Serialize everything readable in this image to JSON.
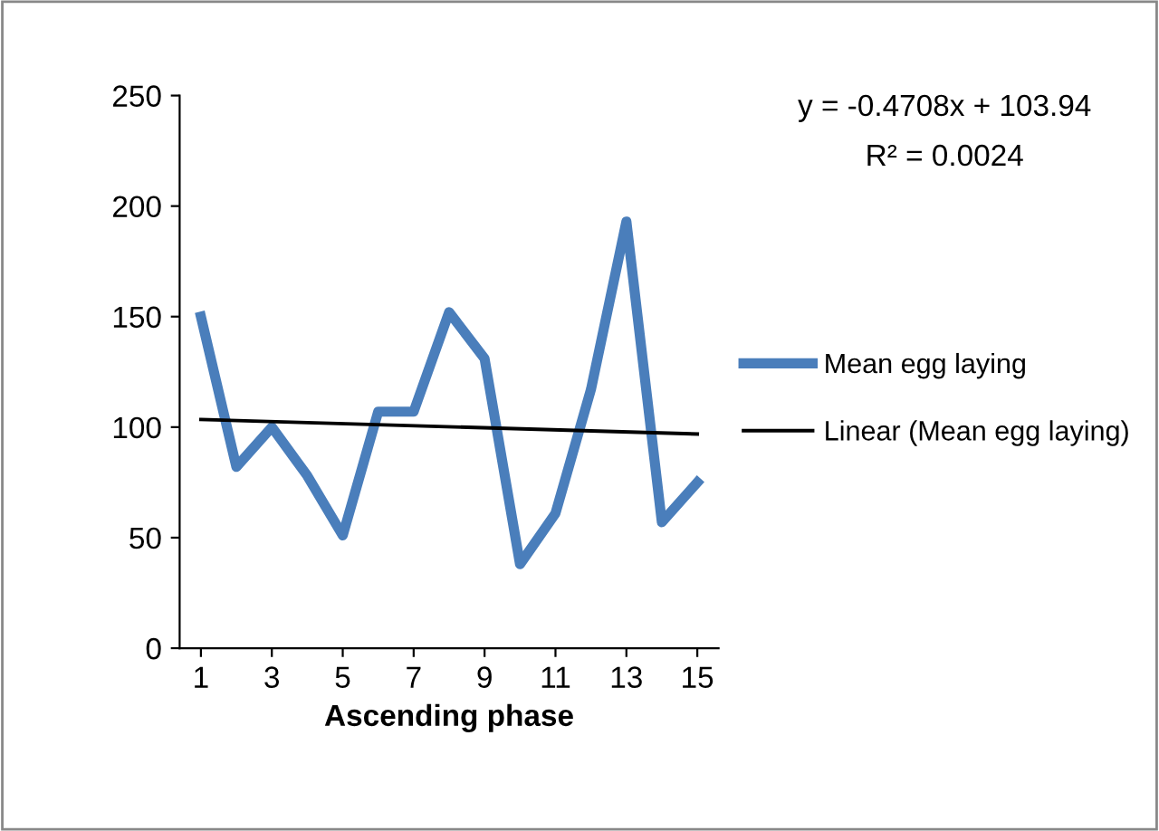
{
  "chart_data": {
    "type": "line",
    "xlabel": "Ascending phase",
    "x": [
      1,
      2,
      3,
      4,
      5,
      6,
      7,
      8,
      9,
      10,
      11,
      12,
      13,
      14,
      15
    ],
    "series": [
      {
        "name": "Mean egg laying",
        "color": "#4a7ebb",
        "values": [
          150,
          82,
          100,
          78,
          51,
          107,
          107,
          152,
          131,
          38,
          61,
          117,
          193,
          57,
          75
        ]
      },
      {
        "name": "Linear (Mean egg laying)",
        "type": "line",
        "color": "#000000",
        "x": [
          1,
          15
        ],
        "values": [
          103.47,
          96.88
        ]
      }
    ],
    "xlim": [
      0.4,
      15.6
    ],
    "xticks": [
      1,
      3,
      5,
      7,
      9,
      11,
      13,
      15
    ],
    "ylim": [
      0,
      250
    ],
    "yticks": [
      0,
      50,
      100,
      150,
      200,
      250
    ],
    "annotations": [
      "y = -0.4708x + 103.94",
      "R² = 0.0024"
    ],
    "legend": "right",
    "grid": false
  }
}
